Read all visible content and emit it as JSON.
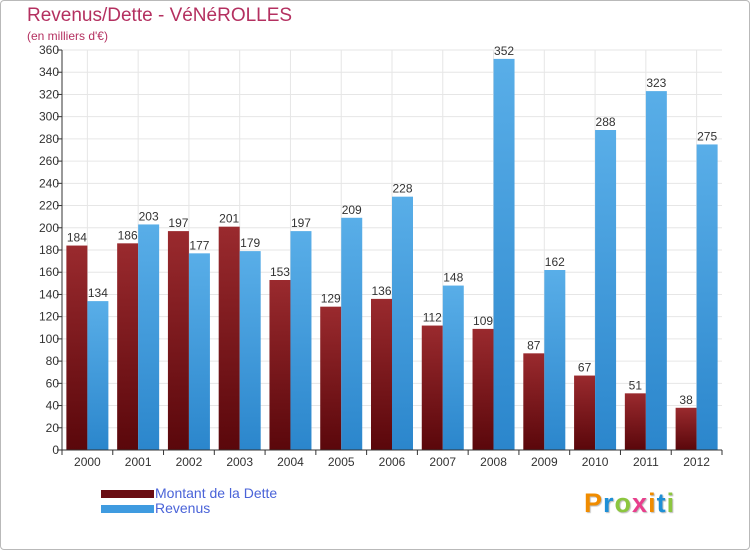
{
  "chart_data": {
    "type": "bar",
    "title": "Revenus/Dette - VéNéROLLES",
    "subtitle": "(en milliers d'€)",
    "categories": [
      "2000",
      "2001",
      "2002",
      "2003",
      "2004",
      "2005",
      "2006",
      "2007",
      "2008",
      "2009",
      "2010",
      "2011",
      "2012"
    ],
    "series": [
      {
        "name": "Montant de la Dette",
        "color": "#7a1419",
        "values": [
          184,
          186,
          197,
          201,
          153,
          129,
          136,
          112,
          109,
          87,
          67,
          51,
          38
        ]
      },
      {
        "name": "Revenus",
        "color": "#3f9be0",
        "values": [
          134,
          203,
          177,
          179,
          197,
          209,
          228,
          148,
          352,
          162,
          288,
          323,
          275
        ]
      }
    ],
    "ylim": [
      0,
      360
    ],
    "ytick_step": 20,
    "grid": true,
    "legend": "bottom-left"
  },
  "branding": {
    "letters": [
      "P",
      "r",
      "o",
      "x",
      "i",
      "t",
      "i"
    ],
    "colors": [
      "#f08c00",
      "#1e8fd6",
      "#8cc63f",
      "#e83e8c",
      "#f08c00",
      "#1e8fd6",
      "#8cc63f"
    ]
  }
}
